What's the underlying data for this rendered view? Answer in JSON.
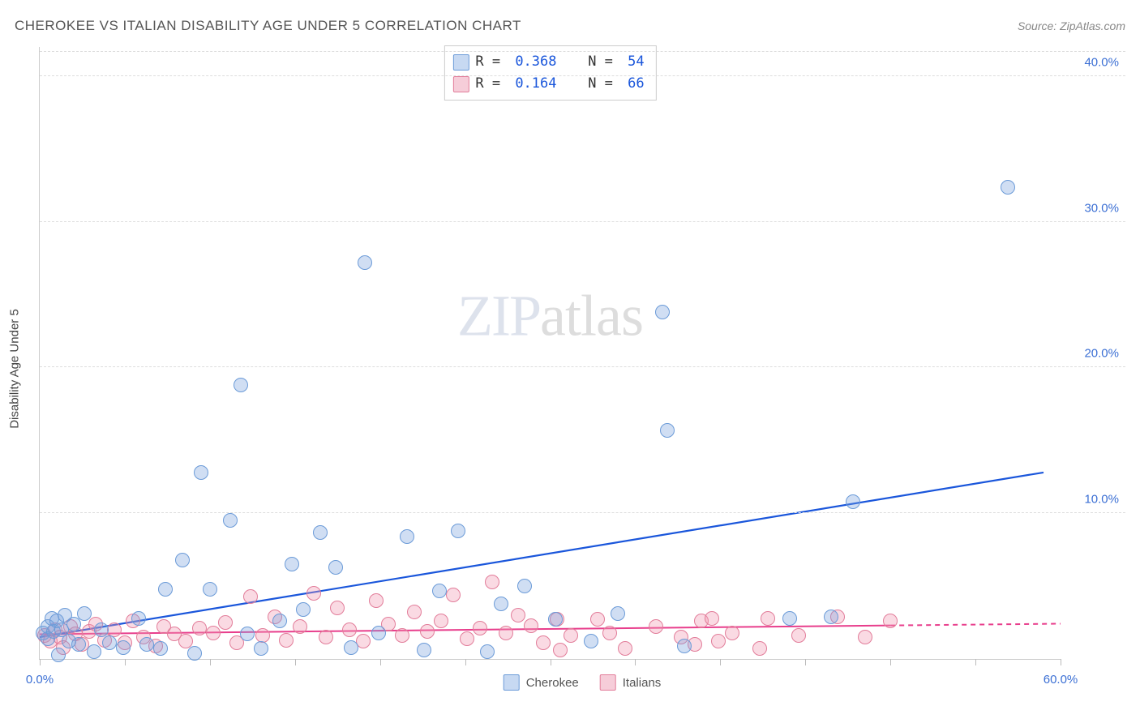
{
  "header": {
    "title": "CHEROKEE VS ITALIAN DISABILITY AGE UNDER 5 CORRELATION CHART",
    "source": "Source: ZipAtlas.com"
  },
  "watermark": {
    "part1": "ZIP",
    "part2": "atlas"
  },
  "chart": {
    "type": "scatter",
    "y_axis_label": "Disability Age Under 5",
    "background_color": "#ffffff",
    "grid_color": "#dddddd",
    "axis_color": "#cccccc",
    "label_color": "#3b6fd4",
    "label_fontsize": 15,
    "xlim": [
      0,
      60
    ],
    "ylim": [
      0,
      42
    ],
    "x_ticks": [
      0,
      5,
      10,
      15,
      20,
      25,
      30,
      35,
      40,
      45,
      50,
      55,
      60
    ],
    "x_tick_labels": {
      "0": "0.0%",
      "60": "60.0%"
    },
    "y_ticks": [
      10,
      20,
      30,
      40
    ],
    "y_tick_labels": {
      "10": "10.0%",
      "20": "20.0%",
      "30": "30.0%",
      "40": "40.0%"
    },
    "marker_radius": 9,
    "marker_stroke_width": 1.2,
    "series": {
      "cherokee": {
        "label": "Cherokee",
        "fill": "rgba(120,160,220,0.35)",
        "stroke": "#6b9bd8",
        "swatch_fill": "#c7d9f2",
        "swatch_stroke": "#6b9bd8",
        "stats": {
          "R": "0.368",
          "N": "54"
        },
        "trend": {
          "x1": 0,
          "y1": 1.5,
          "x2": 59,
          "y2": 12.8,
          "color": "#1a56db",
          "width": 2.2,
          "dash": "none"
        },
        "points": [
          [
            0.2,
            1.8
          ],
          [
            0.5,
            2.2
          ],
          [
            0.5,
            1.4
          ],
          [
            0.7,
            2.8
          ],
          [
            0.8,
            1.9
          ],
          [
            1.0,
            2.6
          ],
          [
            1.1,
            0.3
          ],
          [
            1.3,
            2.0
          ],
          [
            1.5,
            3.0
          ],
          [
            1.7,
            1.2
          ],
          [
            2.0,
            2.4
          ],
          [
            2.3,
            1.0
          ],
          [
            2.6,
            3.1
          ],
          [
            3.2,
            0.5
          ],
          [
            3.6,
            2.0
          ],
          [
            4.1,
            1.1
          ],
          [
            4.9,
            0.8
          ],
          [
            5.8,
            2.8
          ],
          [
            6.3,
            1.0
          ],
          [
            7.1,
            0.7
          ],
          [
            7.4,
            4.8
          ],
          [
            8.4,
            6.8
          ],
          [
            9.1,
            0.4
          ],
          [
            9.5,
            12.8
          ],
          [
            10.0,
            4.8
          ],
          [
            11.2,
            9.5
          ],
          [
            11.8,
            18.8
          ],
          [
            12.2,
            1.7
          ],
          [
            13.0,
            0.7
          ],
          [
            14.1,
            2.6
          ],
          [
            14.8,
            6.5
          ],
          [
            15.5,
            3.4
          ],
          [
            16.5,
            8.7
          ],
          [
            17.4,
            6.3
          ],
          [
            18.3,
            0.8
          ],
          [
            19.1,
            27.2
          ],
          [
            19.9,
            1.8
          ],
          [
            21.6,
            8.4
          ],
          [
            22.6,
            0.6
          ],
          [
            23.5,
            4.7
          ],
          [
            24.6,
            8.8
          ],
          [
            26.3,
            0.5
          ],
          [
            27.1,
            3.8
          ],
          [
            28.5,
            5.0
          ],
          [
            30.3,
            2.7
          ],
          [
            32.4,
            1.2
          ],
          [
            34.0,
            3.1
          ],
          [
            36.6,
            23.8
          ],
          [
            36.9,
            15.7
          ],
          [
            37.9,
            0.9
          ],
          [
            44.1,
            2.8
          ],
          [
            46.5,
            2.9
          ],
          [
            47.8,
            10.8
          ],
          [
            56.9,
            32.4
          ]
        ]
      },
      "italians": {
        "label": "Italians",
        "fill": "rgba(240,150,175,0.35)",
        "stroke": "#e27d9a",
        "swatch_fill": "#f6cdd9",
        "swatch_stroke": "#e27d9a",
        "stats": {
          "R": "0.164",
          "N": "66"
        },
        "trend": {
          "x1": 0,
          "y1": 1.7,
          "x2": 50,
          "y2": 2.3,
          "color": "#e83e8c",
          "width": 2,
          "dash_to": 50,
          "dash_end": 60,
          "dash": "6,5"
        },
        "points": [
          [
            0.3,
            1.6
          ],
          [
            0.6,
            1.2
          ],
          [
            0.9,
            2.0
          ],
          [
            1.2,
            1.5
          ],
          [
            1.4,
            0.8
          ],
          [
            1.8,
            2.2
          ],
          [
            2.1,
            1.7
          ],
          [
            2.5,
            1.0
          ],
          [
            2.9,
            1.9
          ],
          [
            3.3,
            2.4
          ],
          [
            3.8,
            1.3
          ],
          [
            4.4,
            2.0
          ],
          [
            5.0,
            1.1
          ],
          [
            5.5,
            2.6
          ],
          [
            6.1,
            1.5
          ],
          [
            6.8,
            0.9
          ],
          [
            7.3,
            2.2
          ],
          [
            7.9,
            1.7
          ],
          [
            8.6,
            1.2
          ],
          [
            9.4,
            2.1
          ],
          [
            10.2,
            1.8
          ],
          [
            10.9,
            2.5
          ],
          [
            11.6,
            1.1
          ],
          [
            12.4,
            4.3
          ],
          [
            13.1,
            1.6
          ],
          [
            13.8,
            2.9
          ],
          [
            14.5,
            1.3
          ],
          [
            15.3,
            2.2
          ],
          [
            16.1,
            4.5
          ],
          [
            16.8,
            1.5
          ],
          [
            17.5,
            3.5
          ],
          [
            18.2,
            2.0
          ],
          [
            19.0,
            1.2
          ],
          [
            19.8,
            4.0
          ],
          [
            20.5,
            2.4
          ],
          [
            21.3,
            1.6
          ],
          [
            22.0,
            3.2
          ],
          [
            22.8,
            1.9
          ],
          [
            23.6,
            2.6
          ],
          [
            24.3,
            4.4
          ],
          [
            25.1,
            1.4
          ],
          [
            25.9,
            2.1
          ],
          [
            26.6,
            5.3
          ],
          [
            27.4,
            1.8
          ],
          [
            28.1,
            3.0
          ],
          [
            28.9,
            2.3
          ],
          [
            29.6,
            1.1
          ],
          [
            30.4,
            2.7
          ],
          [
            30.6,
            0.6
          ],
          [
            31.2,
            1.6
          ],
          [
            32.8,
            2.7
          ],
          [
            33.5,
            1.8
          ],
          [
            34.4,
            0.7
          ],
          [
            36.2,
            2.2
          ],
          [
            37.7,
            1.5
          ],
          [
            38.5,
            1.0
          ],
          [
            38.9,
            2.6
          ],
          [
            39.5,
            2.8
          ],
          [
            39.9,
            1.2
          ],
          [
            40.7,
            1.8
          ],
          [
            42.3,
            0.7
          ],
          [
            42.8,
            2.8
          ],
          [
            44.6,
            1.6
          ],
          [
            46.9,
            2.9
          ],
          [
            48.5,
            1.5
          ],
          [
            50.0,
            2.6
          ]
        ]
      }
    }
  }
}
